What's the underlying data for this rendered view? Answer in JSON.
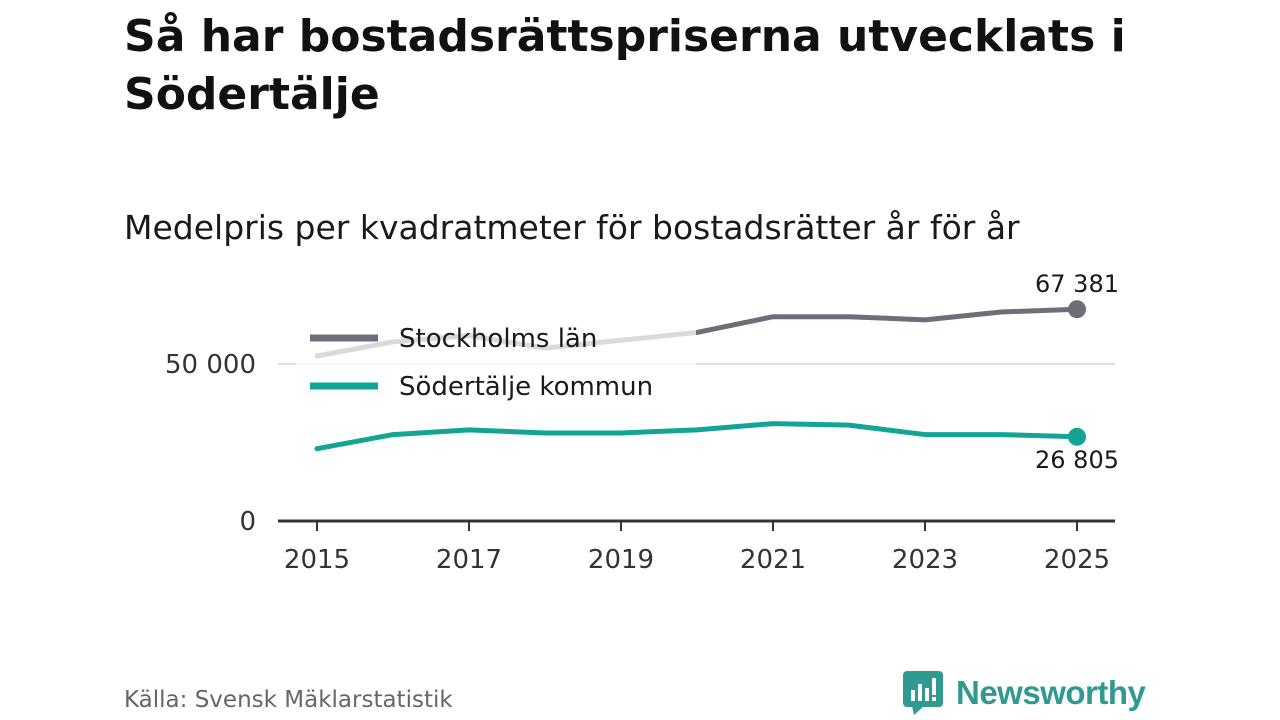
{
  "header": {
    "title": "Så har bostadsrättspriserna utvecklats i Södertälje",
    "subtitle": "Medelpris per kvadratmeter för bostadsrätter år för år"
  },
  "footer": {
    "source": "Källa: Svensk Mäklarstatistik",
    "brand": "Newsworthy"
  },
  "colors": {
    "stockholm": "#6e6e78",
    "sodertalje": "#12a596",
    "gridline": "#dddddd",
    "axis": "#333333",
    "brand": "#2f9a8f"
  },
  "icons": {
    "brand_logo": "bar-chart-speech-bubble-icon"
  },
  "chart_data": {
    "type": "line",
    "title": "Medelpris per kvadratmeter för bostadsrätter år för år",
    "xlabel": "",
    "ylabel": "",
    "x": [
      2015,
      2016,
      2017,
      2018,
      2019,
      2020,
      2021,
      2022,
      2023,
      2024,
      2025
    ],
    "xticks": [
      2015,
      2017,
      2019,
      2021,
      2023,
      2025
    ],
    "ylim": [
      0,
      70000
    ],
    "yticks": [
      0,
      50000
    ],
    "ytick_labels": [
      "0",
      "50 000"
    ],
    "grid": "horizontal",
    "legend_position": "top-left",
    "series": [
      {
        "name": "Stockholms län",
        "values": [
          52500,
          57000,
          59000,
          55000,
          57500,
          60000,
          65000,
          65000,
          64000,
          66500,
          67381
        ],
        "end_label": "67 381"
      },
      {
        "name": "Södertälje kommun",
        "values": [
          23000,
          27500,
          29000,
          28000,
          28000,
          29000,
          31000,
          30500,
          27500,
          27500,
          26805
        ],
        "end_label": "26 805"
      }
    ]
  }
}
